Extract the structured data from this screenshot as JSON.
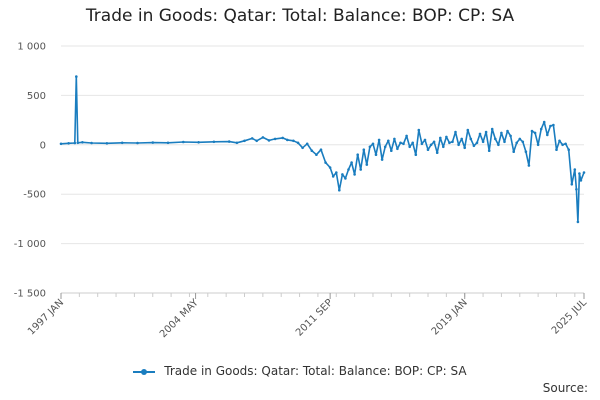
{
  "title": "Trade in Goods: Qatar: Total: Balance: BOP: CP: SA",
  "legend_label": "Trade in Goods: Qatar: Total: Balance: BOP: CP: SA",
  "source_label": "Source:",
  "colors": {
    "series": "#1a7dbf",
    "grid": "#e6e6e6",
    "axis": "#cccccc"
  },
  "chart_data": {
    "type": "line",
    "title": "Trade in Goods: Qatar: Total: Balance: BOP: CP: SA",
    "xlabel": "",
    "ylabel": "",
    "ylim": [
      -1500,
      1000
    ],
    "yticks": [
      1000,
      500,
      0,
      -500,
      -1000,
      -1500
    ],
    "ytick_labels": [
      "1 000",
      "500",
      "0",
      "-500",
      "-1 000",
      "-1 500"
    ],
    "x_index_range": [
      0,
      342
    ],
    "xticks": [
      {
        "index": 0,
        "label": "1997 JAN"
      },
      {
        "index": 88,
        "label": "2004 MAY"
      },
      {
        "index": 176,
        "label": "2011 SEP"
      },
      {
        "index": 264,
        "label": "2019 JAN"
      },
      {
        "index": 342,
        "label": "2025 JUL"
      }
    ],
    "grid": "horizontal",
    "legend": "bottom",
    "series": [
      {
        "name": "Trade in Goods: Qatar: Total: Balance: BOP: CP: SA",
        "points": [
          [
            0,
            10
          ],
          [
            5,
            15
          ],
          [
            9,
            18
          ],
          [
            10,
            690
          ],
          [
            11,
            20
          ],
          [
            14,
            25
          ],
          [
            20,
            18
          ],
          [
            30,
            15
          ],
          [
            40,
            20
          ],
          [
            50,
            18
          ],
          [
            60,
            22
          ],
          [
            70,
            20
          ],
          [
            80,
            28
          ],
          [
            90,
            25
          ],
          [
            100,
            30
          ],
          [
            110,
            32
          ],
          [
            115,
            20
          ],
          [
            120,
            40
          ],
          [
            125,
            65
          ],
          [
            128,
            40
          ],
          [
            132,
            75
          ],
          [
            136,
            45
          ],
          [
            140,
            60
          ],
          [
            145,
            70
          ],
          [
            148,
            50
          ],
          [
            152,
            40
          ],
          [
            155,
            20
          ],
          [
            158,
            -30
          ],
          [
            161,
            10
          ],
          [
            164,
            -60
          ],
          [
            167,
            -100
          ],
          [
            170,
            -50
          ],
          [
            173,
            -180
          ],
          [
            176,
            -230
          ],
          [
            178,
            -320
          ],
          [
            180,
            -280
          ],
          [
            182,
            -460
          ],
          [
            184,
            -300
          ],
          [
            186,
            -340
          ],
          [
            188,
            -250
          ],
          [
            190,
            -180
          ],
          [
            192,
            -300
          ],
          [
            194,
            -100
          ],
          [
            196,
            -250
          ],
          [
            198,
            -50
          ],
          [
            200,
            -200
          ],
          [
            202,
            -20
          ],
          [
            204,
            10
          ],
          [
            206,
            -100
          ],
          [
            208,
            50
          ],
          [
            210,
            -150
          ],
          [
            212,
            -20
          ],
          [
            214,
            40
          ],
          [
            216,
            -60
          ],
          [
            218,
            60
          ],
          [
            220,
            -40
          ],
          [
            222,
            20
          ],
          [
            224,
            10
          ],
          [
            226,
            90
          ],
          [
            228,
            -20
          ],
          [
            230,
            20
          ],
          [
            232,
            -100
          ],
          [
            234,
            150
          ],
          [
            236,
            10
          ],
          [
            238,
            50
          ],
          [
            240,
            -50
          ],
          [
            242,
            0
          ],
          [
            244,
            30
          ],
          [
            246,
            -80
          ],
          [
            248,
            70
          ],
          [
            250,
            -20
          ],
          [
            252,
            80
          ],
          [
            254,
            20
          ],
          [
            256,
            30
          ],
          [
            258,
            130
          ],
          [
            260,
            0
          ],
          [
            262,
            60
          ],
          [
            264,
            -30
          ],
          [
            266,
            150
          ],
          [
            268,
            60
          ],
          [
            270,
            -10
          ],
          [
            272,
            20
          ],
          [
            274,
            110
          ],
          [
            276,
            30
          ],
          [
            278,
            130
          ],
          [
            280,
            -60
          ],
          [
            282,
            160
          ],
          [
            284,
            60
          ],
          [
            286,
            0
          ],
          [
            288,
            120
          ],
          [
            290,
            30
          ],
          [
            292,
            140
          ],
          [
            294,
            90
          ],
          [
            296,
            -70
          ],
          [
            298,
            20
          ],
          [
            300,
            60
          ],
          [
            302,
            30
          ],
          [
            304,
            -70
          ],
          [
            306,
            -210
          ],
          [
            308,
            140
          ],
          [
            310,
            120
          ],
          [
            312,
            0
          ],
          [
            314,
            160
          ],
          [
            316,
            230
          ],
          [
            318,
            100
          ],
          [
            320,
            190
          ],
          [
            322,
            200
          ],
          [
            324,
            -50
          ],
          [
            326,
            40
          ],
          [
            328,
            0
          ],
          [
            330,
            10
          ],
          [
            332,
            -50
          ],
          [
            334,
            -400
          ],
          [
            336,
            -250
          ],
          [
            337,
            -450
          ],
          [
            338,
            -780
          ],
          [
            339,
            -290
          ],
          [
            340,
            -360
          ],
          [
            342,
            -280
          ]
        ]
      }
    ]
  }
}
